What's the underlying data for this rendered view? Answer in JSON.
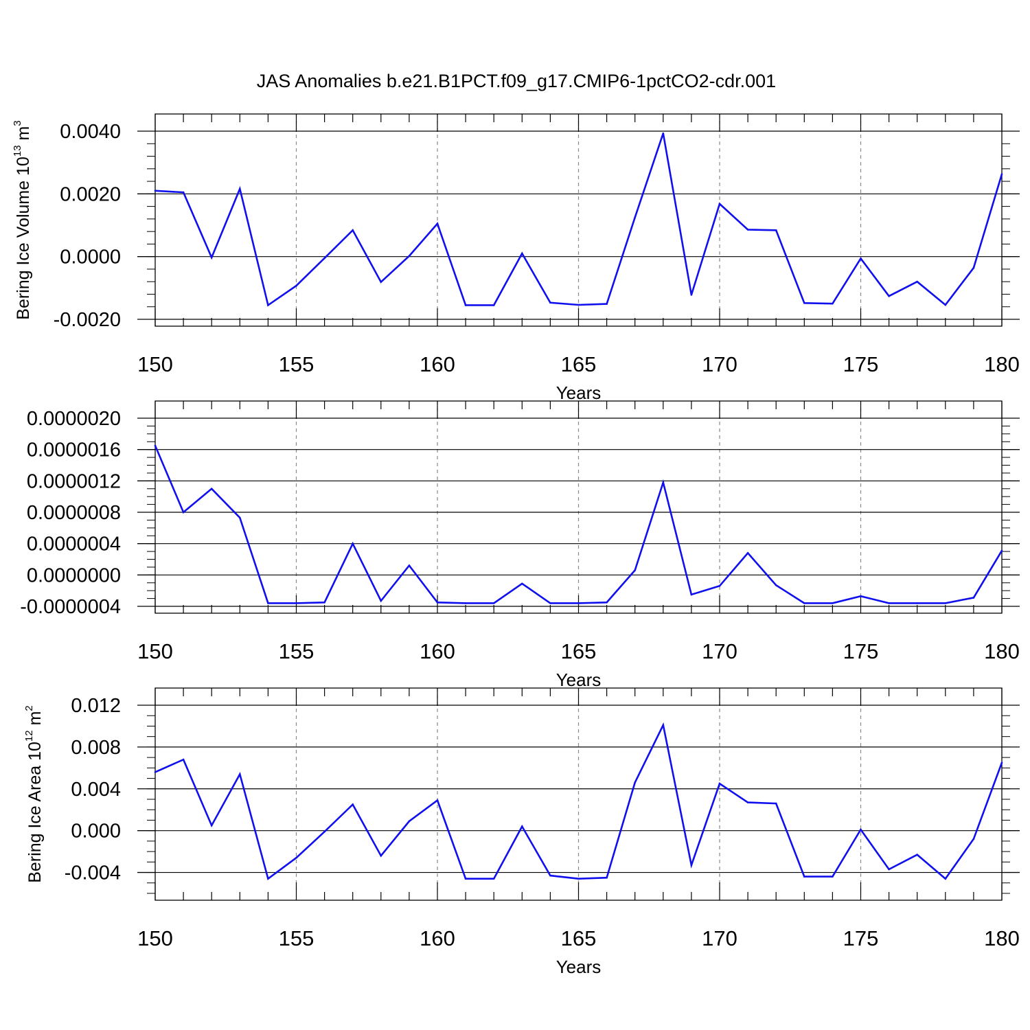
{
  "title": "JAS Anomalies b.e21.B1PCT.f09_g17.CMIP6-1pctCO2-cdr.001",
  "chart_data": [
    {
      "type": "line",
      "title": "JAS Anomalies b.e21.B1PCT.f09_g17.CMIP6-1pctCO2-cdr.001",
      "xlabel": "Years",
      "ylabel": "Bering Ice Volume 10",
      "ylabel_exp": "13",
      "ylabel_unit": " m",
      "ylabel_unit_exp": "3",
      "xlim": [
        150,
        180
      ],
      "ylim": [
        -0.002,
        0.004
      ],
      "x_ticks": [
        150,
        155,
        160,
        165,
        170,
        175,
        180
      ],
      "x_tick_labels": [
        "150",
        "155",
        "160",
        "165",
        "170",
        "175",
        "180"
      ],
      "y_ticks": [
        -0.002,
        0.0,
        0.002,
        0.004
      ],
      "y_tick_labels": [
        "-0.0020",
        "0.0000",
        "0.0020",
        "0.0040"
      ],
      "y_minor_step": 0.0004,
      "grid": "vertical dashed at major x ticks",
      "line_color": "#1010ee",
      "x": [
        150,
        151,
        152,
        153,
        154,
        155,
        156,
        157,
        158,
        159,
        160,
        161,
        162,
        163,
        164,
        165,
        166,
        167,
        168,
        169,
        170,
        171,
        172,
        173,
        174,
        175,
        176,
        177,
        178,
        179,
        180
      ],
      "y": [
        0.0021,
        0.00205,
        -3e-05,
        0.00216,
        -0.00155,
        -0.00093,
        -5e-05,
        0.00084,
        -0.00081,
        2e-05,
        0.00105,
        -0.00155,
        -0.00155,
        0.0001,
        -0.00147,
        -0.00154,
        -0.00151,
        0.00125,
        0.00393,
        -0.00122,
        0.00168,
        0.00086,
        0.00084,
        -0.00148,
        -0.0015,
        -6e-05,
        -0.00126,
        -0.0008,
        -0.00154,
        -0.00036,
        0.00263
      ]
    },
    {
      "type": "line",
      "xlabel": "Years",
      "ylabel": "",
      "xlim": [
        150,
        180
      ],
      "ylim": [
        -4e-07,
        2e-06
      ],
      "x_ticks": [
        150,
        155,
        160,
        165,
        170,
        175,
        180
      ],
      "x_tick_labels": [
        "150",
        "155",
        "160",
        "165",
        "170",
        "175",
        "180"
      ],
      "y_ticks": [
        -4e-07,
        0.0,
        4e-07,
        8e-07,
        1.2e-06,
        1.6e-06,
        2e-06
      ],
      "y_tick_labels": [
        "-0.0000004",
        "0.0000000",
        "0.0000004",
        "0.0000008",
        "0.0000012",
        "0.0000016",
        "0.0000020"
      ],
      "y_minor_step": 1e-07,
      "grid": "vertical dashed at major x ticks",
      "line_color": "#1010ee",
      "x": [
        150,
        151,
        152,
        153,
        154,
        155,
        156,
        157,
        158,
        159,
        160,
        161,
        162,
        163,
        164,
        165,
        166,
        167,
        168,
        169,
        170,
        171,
        172,
        173,
        174,
        175,
        176,
        177,
        178,
        179,
        180
      ],
      "y": [
        1.65e-06,
        8e-07,
        1.1e-06,
        7.3e-07,
        -3.6e-07,
        -3.6e-07,
        -3.5e-07,
        4e-07,
        -3.3e-07,
        1.2e-07,
        -3.5e-07,
        -3.6e-07,
        -3.6e-07,
        -1.1e-07,
        -3.6e-07,
        -3.6e-07,
        -3.5e-07,
        6e-08,
        1.18e-06,
        -2.5e-07,
        -1.4e-07,
        2.8e-07,
        -1.3e-07,
        -3.6e-07,
        -3.6e-07,
        -2.7e-07,
        -3.6e-07,
        -3.6e-07,
        -3.6e-07,
        -2.9e-07,
        3.1e-07
      ]
    },
    {
      "type": "line",
      "xlabel": "Years",
      "ylabel": "Bering Ice Area 10",
      "ylabel_exp": "12",
      "ylabel_unit": " m",
      "ylabel_unit_exp": "2",
      "xlim": [
        150,
        180
      ],
      "ylim": [
        -0.006,
        0.012
      ],
      "x_ticks": [
        150,
        155,
        160,
        165,
        170,
        175,
        180
      ],
      "x_tick_labels": [
        "150",
        "155",
        "160",
        "165",
        "170",
        "175",
        "180"
      ],
      "y_ticks": [
        -0.004,
        0.0,
        0.004,
        0.008,
        0.012
      ],
      "y_tick_labels": [
        "-0.004",
        "0.000",
        "0.004",
        "0.008",
        "0.012"
      ],
      "y_minor_step": 0.001,
      "grid": "vertical dashed at major x ticks",
      "line_color": "#1010ee",
      "x": [
        150,
        151,
        152,
        153,
        154,
        155,
        156,
        157,
        158,
        159,
        160,
        161,
        162,
        163,
        164,
        165,
        166,
        167,
        168,
        169,
        170,
        171,
        172,
        173,
        174,
        175,
        176,
        177,
        178,
        179,
        180
      ],
      "y": [
        0.0056,
        0.0068,
        0.0005,
        0.0054,
        -0.0046,
        -0.0026,
        -0.0001,
        0.0025,
        -0.0024,
        0.0009,
        0.0029,
        -0.0046,
        -0.0046,
        0.0004,
        -0.0043,
        -0.0046,
        -0.0045,
        0.0046,
        0.0101,
        -0.0033,
        0.0045,
        0.0027,
        0.0026,
        -0.0044,
        -0.0044,
        0.0001,
        -0.0037,
        -0.0023,
        -0.0046,
        -0.0008,
        0.0065
      ]
    }
  ]
}
